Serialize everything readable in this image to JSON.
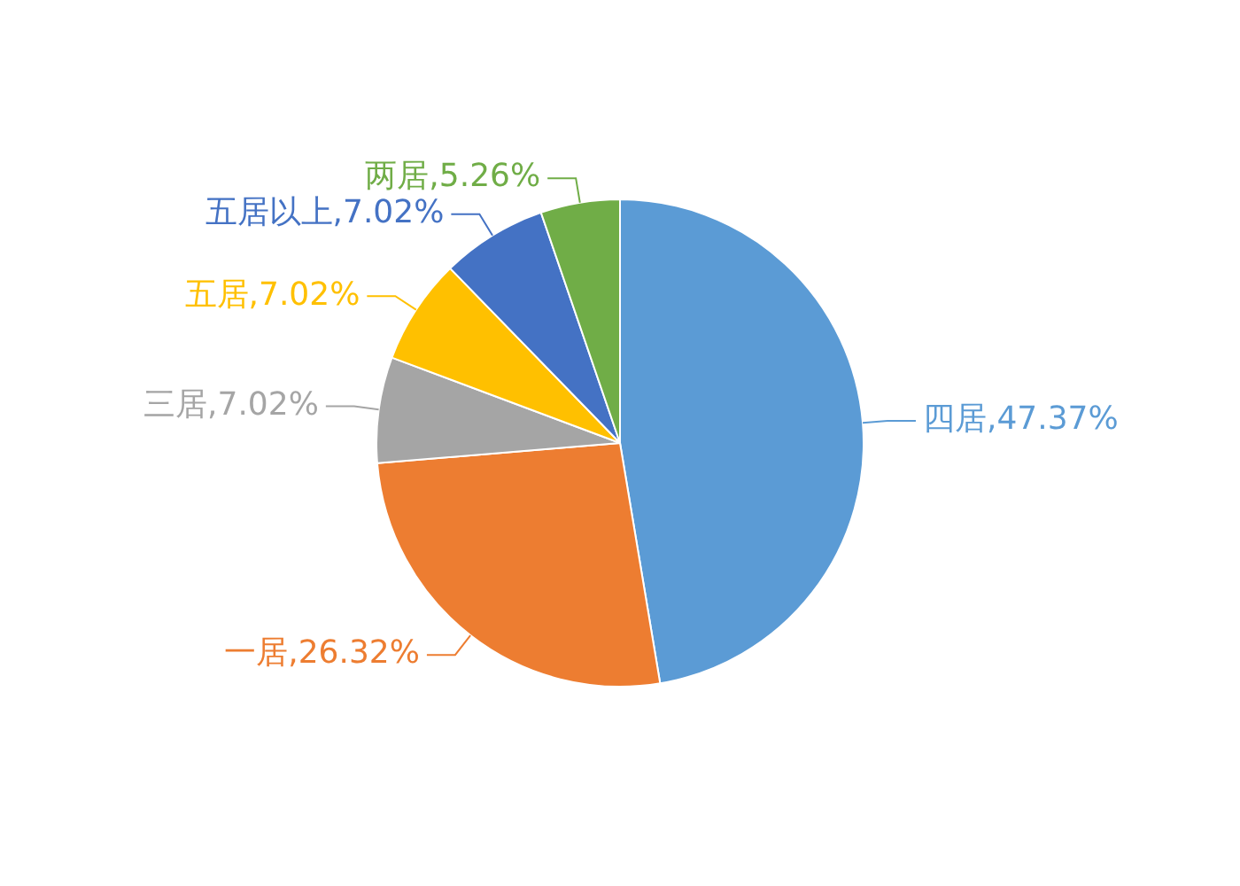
{
  "chart_data": {
    "type": "pie",
    "categories": [
      "四居",
      "一居",
      "三居",
      "五居",
      "五居以上",
      "两居"
    ],
    "values": [
      47.37,
      26.32,
      7.02,
      7.02,
      7.02,
      5.26
    ],
    "value_labels": [
      "47.37%",
      "26.32%",
      "7.02%",
      "7.02%",
      "7.02%",
      "5.26%"
    ],
    "colors": [
      "#5b9bd5",
      "#ed7d31",
      "#a5a5a5",
      "#ffc000",
      "#4472c4",
      "#70ad47"
    ],
    "legend": false
  }
}
